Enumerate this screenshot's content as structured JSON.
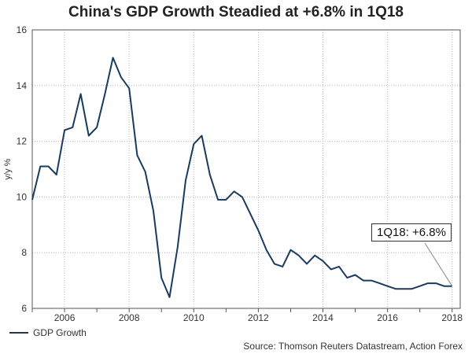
{
  "chart_data": {
    "type": "line",
    "title": "China's GDP Growth Steadied at +6.8% in 1Q18",
    "xlabel": "",
    "ylabel": "y/y %",
    "xlim": [
      2005.0,
      2018.25
    ],
    "ylim": [
      6,
      16
    ],
    "yticks": [
      6,
      8,
      10,
      12,
      14,
      16
    ],
    "xticks": [
      2006,
      2008,
      2010,
      2012,
      2014,
      2016,
      2018
    ],
    "grid": true,
    "legend_position": "bottom-left",
    "series": [
      {
        "name": "GDP Growth",
        "color": "#1a3a5e",
        "x": [
          2005.0,
          2005.25,
          2005.5,
          2005.75,
          2006.0,
          2006.25,
          2006.5,
          2006.75,
          2007.0,
          2007.25,
          2007.5,
          2007.75,
          2008.0,
          2008.25,
          2008.5,
          2008.75,
          2009.0,
          2009.25,
          2009.5,
          2009.75,
          2010.0,
          2010.25,
          2010.5,
          2010.75,
          2011.0,
          2011.25,
          2011.5,
          2011.75,
          2012.0,
          2012.25,
          2012.5,
          2012.75,
          2013.0,
          2013.25,
          2013.5,
          2013.75,
          2014.0,
          2014.25,
          2014.5,
          2014.75,
          2015.0,
          2015.25,
          2015.5,
          2015.75,
          2016.0,
          2016.25,
          2016.5,
          2016.75,
          2017.0,
          2017.25,
          2017.5,
          2017.75,
          2018.0
        ],
        "values": [
          9.9,
          11.1,
          11.1,
          10.8,
          12.4,
          12.5,
          13.7,
          12.2,
          12.5,
          13.7,
          15.0,
          14.3,
          13.9,
          11.5,
          10.9,
          9.5,
          7.1,
          6.4,
          8.2,
          10.6,
          11.9,
          12.2,
          10.8,
          9.9,
          9.9,
          10.2,
          10.0,
          9.4,
          8.8,
          8.1,
          7.6,
          7.5,
          8.1,
          7.9,
          7.6,
          7.9,
          7.7,
          7.4,
          7.5,
          7.1,
          7.2,
          7.0,
          7.0,
          6.9,
          6.8,
          6.7,
          6.7,
          6.7,
          6.8,
          6.9,
          6.9,
          6.8,
          6.8
        ]
      }
    ],
    "annotations": [
      {
        "text": "1Q18: +6.8%",
        "x": 2018.0,
        "y": 6.8
      }
    ],
    "source": "Source: Thomson Reuters Datastream, Action Forex"
  }
}
